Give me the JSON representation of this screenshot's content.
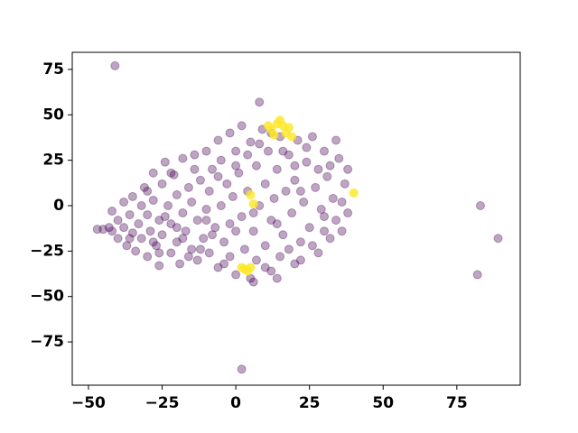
{
  "chart_data": {
    "type": "scatter",
    "xlim": [
      -55.5,
      96.5
    ],
    "ylim": [
      -98.8,
      84.4
    ],
    "xticks": [
      {
        "value": -50,
        "label": "−50"
      },
      {
        "value": -25,
        "label": "−25"
      },
      0,
      25,
      50,
      75
    ],
    "yticks": [
      {
        "value": -75,
        "label": "−75"
      },
      {
        "value": -50,
        "label": "−50"
      },
      {
        "value": -25,
        "label": "−25"
      },
      0,
      25,
      50,
      75
    ],
    "grid": false,
    "series": [
      {
        "color": "#440154",
        "alpha": 0.35,
        "x": [
          -45,
          -47,
          -43,
          -42,
          -40,
          -40,
          -38,
          -38,
          -37,
          -36,
          -35,
          -35,
          -34,
          -33,
          -32,
          -32,
          -31,
          -30,
          -30,
          -29,
          -28,
          -28,
          -27,
          -26,
          -26,
          -25,
          -25,
          -24,
          -23,
          -22,
          -22,
          -21,
          -20,
          -20,
          -19,
          -18,
          -18,
          -17,
          -16,
          -15,
          -15,
          -14,
          -13,
          -13,
          -12,
          -11,
          -10,
          -10,
          -9,
          -9,
          -8,
          -7,
          -6,
          -6,
          -5,
          -5,
          -4,
          -3,
          -2,
          -2,
          -1,
          0,
          0,
          1,
          2,
          2,
          3,
          4,
          5,
          5,
          6,
          7,
          7,
          8,
          9,
          10,
          10,
          11,
          12,
          12,
          13,
          14,
          15,
          15,
          16,
          17,
          18,
          19,
          20,
          20,
          21,
          22,
          23,
          24,
          25,
          26,
          27,
          28,
          29,
          30,
          31,
          32,
          33,
          34,
          35,
          36,
          37,
          38,
          38,
          34,
          30,
          26,
          22,
          18,
          14,
          10,
          6,
          0,
          -4,
          -8,
          -12,
          -16,
          -20,
          -24,
          -28,
          -36,
          -42,
          -30,
          -22,
          -14,
          -6,
          0,
          4,
          8,
          12,
          16,
          20,
          24,
          28,
          32,
          36,
          30,
          22,
          14,
          6,
          -2,
          -10,
          -18,
          -26,
          8,
          -41,
          83,
          89,
          82,
          2
        ],
        "values": [
          -13,
          -13,
          -12,
          -3,
          -8,
          -18,
          -12,
          2,
          -22,
          -5,
          5,
          -15,
          -25,
          -10,
          0,
          -18,
          10,
          -28,
          -5,
          -14,
          18,
          3,
          -22,
          -33,
          -8,
          12,
          -16,
          24,
          0,
          -26,
          -10,
          17,
          6,
          -20,
          -32,
          -4,
          26,
          -14,
          10,
          -24,
          2,
          20,
          -8,
          -30,
          14,
          -18,
          -2,
          30,
          -26,
          8,
          20,
          -12,
          36,
          -34,
          0,
          25,
          -20,
          12,
          40,
          -28,
          5,
          -14,
          30,
          18,
          -6,
          44,
          -24,
          8,
          35,
          -40,
          -14,
          22,
          -30,
          0,
          42,
          -22,
          12,
          30,
          -36,
          -8,
          4,
          20,
          -28,
          38,
          -16,
          8,
          28,
          -4,
          -32,
          14,
          36,
          -20,
          2,
          24,
          -12,
          38,
          10,
          -26,
          -2,
          30,
          16,
          -18,
          4,
          -8,
          26,
          -14,
          12,
          -4,
          20,
          36,
          -14,
          -22,
          -30,
          -24,
          -40,
          -34,
          -42,
          -38,
          -32,
          -16,
          -24,
          -28,
          -12,
          -6,
          -20,
          -18,
          -14,
          8,
          18,
          28,
          16,
          22,
          28,
          34,
          40,
          30,
          22,
          32,
          20,
          22,
          2,
          -6,
          8,
          -10,
          -4,
          -10,
          -8,
          -18,
          -26,
          57,
          77,
          0,
          -18,
          -38,
          -90
        ]
      },
      {
        "color": "#fde725",
        "alpha": 0.8,
        "x": [
          12,
          14,
          16,
          17,
          13,
          15,
          18,
          19,
          11,
          3,
          4,
          5,
          2,
          40,
          5,
          6
        ],
        "values": [
          42,
          45,
          44,
          40,
          39,
          47,
          43,
          38,
          44,
          -35,
          -36,
          -34,
          -34,
          7,
          6,
          1
        ]
      }
    ]
  }
}
